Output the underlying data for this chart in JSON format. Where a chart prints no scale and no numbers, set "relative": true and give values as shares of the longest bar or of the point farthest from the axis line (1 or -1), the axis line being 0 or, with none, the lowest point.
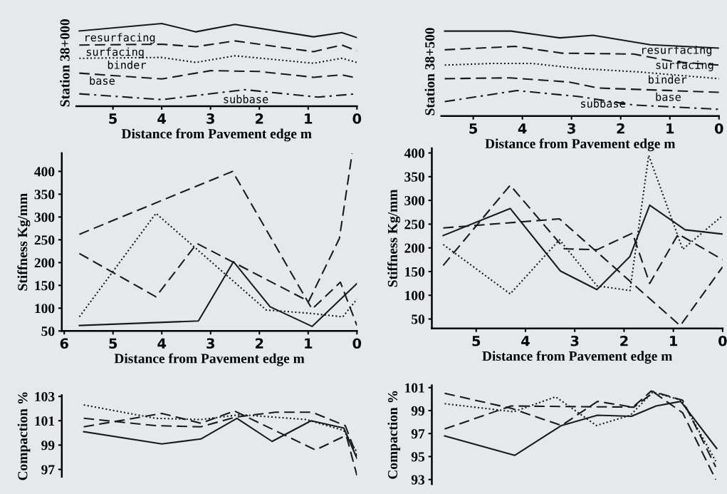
{
  "chart_data": [
    {
      "type": "line",
      "relative": true,
      "ylabel": "Station 38+000",
      "xlabel": "Distance from Pavement edge m",
      "xlim": [
        5.75,
        0
      ],
      "xticks": [
        5,
        4,
        3,
        2,
        1,
        0
      ],
      "series": [
        {
          "name": "resurfacing",
          "color": "#1a1a1a",
          "line_style": "solid",
          "x": [
            5.69,
            4.0,
            3.3,
            2.5,
            0.89,
            0.31,
            0
          ],
          "values": [
            0.91,
            1.0,
            0.9,
            0.99,
            0.84,
            0.89,
            0.83
          ]
        },
        {
          "name": "surfacing",
          "color": "#1a1a1a",
          "line_style": "dashed",
          "x": [
            5.69,
            4.0,
            3.3,
            2.5,
            0.89,
            0.31,
            0
          ],
          "values": [
            0.74,
            0.75,
            0.72,
            0.79,
            0.66,
            0.74,
            0.67
          ]
        },
        {
          "name": "binder",
          "color": "#1a1a1a",
          "line_style": "dotted",
          "x": [
            5.69,
            4.0,
            3.3,
            2.5,
            0.89,
            0.31,
            0
          ],
          "values": [
            0.58,
            0.59,
            0.53,
            0.61,
            0.52,
            0.58,
            0.53
          ]
        },
        {
          "name": "base",
          "color": "#1a1a1a",
          "line_style": "dashed",
          "x": [
            5.69,
            4.0,
            3.0,
            2.0,
            0.89,
            0.31,
            0
          ],
          "values": [
            0.4,
            0.33,
            0.43,
            0.42,
            0.35,
            0.38,
            0.34
          ]
        },
        {
          "name": "subbase",
          "color": "#1a1a1a",
          "line_style": "dashdot",
          "x": [
            5.69,
            4.0,
            2.3,
            0.8,
            0
          ],
          "values": [
            0.15,
            0.08,
            0.2,
            0.11,
            0.15
          ]
        }
      ]
    },
    {
      "type": "line",
      "relative": true,
      "ylabel": "Station 38+500",
      "xlabel": "Distance from Pavement edge m",
      "xlim": [
        5.65,
        0
      ],
      "xticks": [
        5,
        4,
        3,
        2,
        1,
        0
      ],
      "series": [
        {
          "name": "resurfacing",
          "color": "#1a1a1a",
          "line_style": "solid",
          "x": [
            5.58,
            4.23,
            3.24,
            2.56,
            1.4,
            0
          ],
          "values": [
            1.0,
            1.0,
            0.92,
            0.95,
            0.84,
            0.8
          ]
        },
        {
          "name": "surfacing",
          "color": "#1a1a1a",
          "line_style": "dashed",
          "x": [
            5.58,
            4.15,
            3.19,
            1.74,
            0.92,
            0
          ],
          "values": [
            0.78,
            0.82,
            0.74,
            0.73,
            0.64,
            0.6
          ]
        },
        {
          "name": "binder",
          "color": "#1a1a1a",
          "line_style": "dotted",
          "x": [
            5.58,
            4.59,
            3.82,
            2.85,
            1.64,
            0
          ],
          "values": [
            0.6,
            0.62,
            0.62,
            0.56,
            0.52,
            0.44
          ]
        },
        {
          "name": "base",
          "color": "#1a1a1a",
          "line_style": "dashed",
          "x": [
            5.58,
            4.25,
            3.04,
            2.46,
            0
          ],
          "values": [
            0.44,
            0.45,
            0.4,
            0.33,
            0.28
          ]
        },
        {
          "name": "subbase",
          "color": "#1a1a1a",
          "line_style": "dashdot",
          "x": [
            5.58,
            4.11,
            2.85,
            1.74,
            0
          ],
          "values": [
            0.17,
            0.3,
            0.23,
            0.13,
            0.08
          ]
        }
      ]
    },
    {
      "type": "line",
      "ylabel": "Stiffness Kg/mm",
      "xlabel": "Distance from Pavement edge m",
      "xlim": [
        6.05,
        0
      ],
      "xticks": [
        6,
        5,
        4,
        3,
        2,
        1,
        0
      ],
      "ylim": [
        50,
        440
      ],
      "yticks": [
        50,
        100,
        150,
        200,
        250,
        300,
        350,
        400
      ],
      "series": [
        {
          "color": "#1a1a1a",
          "line_style": "solid",
          "x": [
            5.69,
            3.25,
            2.53,
            1.78,
            0.92,
            0
          ],
          "values": [
            62,
            72,
            202,
            103,
            60,
            154
          ]
        },
        {
          "color": "#1a1a1a",
          "line_style": "dashed",
          "x": [
            5.69,
            2.55,
            0.92,
            0.34,
            0
          ],
          "values": [
            262,
            400,
            98,
            157,
            62
          ]
        },
        {
          "color": "#1a1a1a",
          "line_style": "dashed",
          "x": [
            5.69,
            4.12,
            3.28,
            0.99,
            0.36,
            0.1
          ],
          "values": [
            220,
            125,
            242,
            115,
            253,
            439
          ]
        },
        {
          "color": "#1a1a1a",
          "line_style": "dotted",
          "x": [
            5.69,
            4.12,
            1.86,
            0.99,
            0.29,
            0
          ],
          "values": [
            81,
            308,
            96,
            89,
            81,
            120
          ]
        }
      ]
    },
    {
      "type": "line",
      "ylabel": "Stiffness Kg/mm",
      "xlabel": "Distance from Pavement edge m",
      "xlim": [
        5.9,
        0
      ],
      "xticks": [
        5,
        4,
        3,
        2,
        1,
        0
      ],
      "ylim": [
        30,
        410
      ],
      "yticks": [
        50,
        100,
        150,
        200,
        250,
        300,
        350,
        400
      ],
      "series": [
        {
          "color": "#1a1a1a",
          "line_style": "solid",
          "x": [
            5.67,
            4.31,
            3.29,
            2.55,
            1.88,
            1.48,
            0.76,
            0
          ],
          "values": [
            226,
            283,
            151,
            112,
            182,
            290,
            238,
            229
          ]
        },
        {
          "color": "#1a1a1a",
          "line_style": "dashed",
          "x": [
            5.67,
            3.31,
            0.86,
            0
          ],
          "values": [
            242,
            261,
            36,
            160
          ]
        },
        {
          "color": "#1a1a1a",
          "line_style": "dashed",
          "x": [
            5.67,
            4.31,
            3.21,
            2.55,
            1.83,
            1.48,
            0.9,
            0
          ],
          "values": [
            163,
            332,
            198,
            196,
            231,
            125,
            229,
            175
          ]
        },
        {
          "color": "#1a1a1a",
          "line_style": "dotted",
          "x": [
            5.67,
            4.31,
            3.31,
            2.55,
            1.88,
            1.5,
            0.81,
            0
          ],
          "values": [
            207,
            103,
            217,
            120,
            110,
            395,
            197,
            268
          ]
        }
      ]
    },
    {
      "type": "line",
      "ylabel": "Compaction %",
      "tick_labels": "y",
      "xlim": [
        6.05,
        0
      ],
      "ylim": [
        96.4,
        103.1
      ],
      "yticks": [
        97,
        99,
        101,
        103
      ],
      "series": [
        {
          "color": "#1a1a1a",
          "line_style": "solid",
          "x": [
            5.6,
            4.0,
            3.2,
            2.46,
            1.74,
            0.94,
            0.27,
            0
          ],
          "values": [
            100.1,
            99.1,
            99.5,
            101.2,
            99.3,
            101.0,
            100.4,
            97.9
          ]
        },
        {
          "color": "#1a1a1a",
          "line_style": "dashed",
          "x": [
            5.6,
            4.13,
            3.2,
            2.49,
            1.67,
            0.92,
            0.24,
            0
          ],
          "values": [
            101.2,
            100.6,
            100.5,
            101.3,
            101.7,
            101.7,
            100.6,
            98.1
          ]
        },
        {
          "color": "#1a1a1a",
          "line_style": "dashed",
          "x": [
            5.6,
            4.0,
            3.2,
            2.51,
            0.85,
            0.22,
            0
          ],
          "values": [
            100.5,
            101.6,
            100.8,
            101.8,
            98.6,
            99.8,
            96.5
          ]
        },
        {
          "color": "#1a1a1a",
          "line_style": "dotted",
          "x": [
            5.6,
            4.13,
            3.2,
            2.39,
            1.04,
            0.27,
            0
          ],
          "values": [
            102.3,
            101.2,
            101.1,
            101.5,
            101.1,
            100.2,
            98.4
          ]
        }
      ]
    },
    {
      "type": "line",
      "ylabel": "Compaction %",
      "tick_labels": "y",
      "xlim": [
        5.9,
        0
      ],
      "ylim": [
        92.6,
        101.2
      ],
      "yticks": [
        93,
        95,
        97,
        99,
        101
      ],
      "series": [
        {
          "color": "#1a1a1a",
          "line_style": "solid",
          "x": [
            5.64,
            4.22,
            3.27,
            2.54,
            1.85,
            1.35,
            0.85,
            0.12
          ],
          "values": [
            96.8,
            95.1,
            97.7,
            98.6,
            98.5,
            99.4,
            99.8,
            95.7
          ]
        },
        {
          "color": "#1a1a1a",
          "line_style": "dashed",
          "x": [
            5.64,
            4.29,
            1.8,
            1.4,
            0.81,
            0.14
          ],
          "values": [
            97.4,
            99.4,
            99.3,
            100.6,
            98.8,
            93.0
          ]
        },
        {
          "color": "#1a1a1a",
          "line_style": "dashed",
          "x": [
            5.64,
            4.29,
            3.27,
            2.54,
            1.82,
            1.45,
            0.81,
            0.14
          ],
          "values": [
            100.5,
            99.2,
            97.7,
            99.8,
            99.3,
            100.7,
            99.9,
            94.1
          ]
        },
        {
          "color": "#1a1a1a",
          "line_style": "dotted",
          "x": [
            5.64,
            4.24,
            3.39,
            2.56,
            1.87,
            1.42,
            0.83,
            0.14
          ],
          "values": [
            99.6,
            98.9,
            100.2,
            97.7,
            98.6,
            100.6,
            99.9,
            94.6
          ]
        }
      ]
    }
  ]
}
